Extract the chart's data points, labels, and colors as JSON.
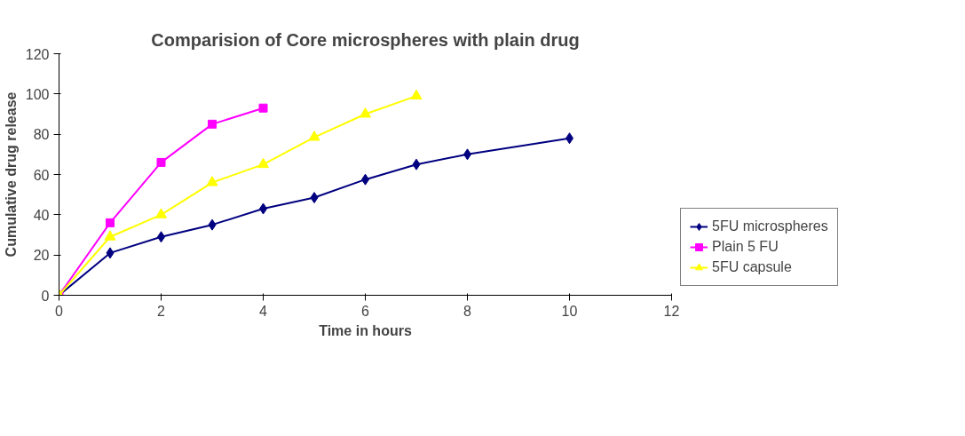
{
  "chart_data": {
    "type": "line",
    "title": "Comparision of Core microspheres with plain drug",
    "xlabel": "Time in hours",
    "ylabel": "Cumulative drug release",
    "xlim": [
      0,
      12
    ],
    "xticks": [
      0,
      2,
      4,
      6,
      8,
      10,
      12
    ],
    "ylim": [
      0,
      120
    ],
    "yticks": [
      0,
      20,
      40,
      60,
      80,
      100,
      120
    ],
    "grid": false,
    "legend": "bottom right",
    "series": [
      {
        "name": "5FU microspheres",
        "color": "#000080",
        "marker": "diamond",
        "x": [
          0,
          1,
          2,
          3,
          4,
          5,
          6,
          7,
          8,
          10
        ],
        "values": [
          0,
          21,
          29,
          35,
          43,
          48.5,
          57.5,
          65,
          70,
          78
        ]
      },
      {
        "name": "Plain 5 FU",
        "color": "#ff00ff",
        "marker": "square",
        "x": [
          0,
          1,
          2,
          3,
          4
        ],
        "values": [
          0,
          36,
          66,
          85,
          93
        ]
      },
      {
        "name": "5FU capsule",
        "color": "#ffff00",
        "marker": "triangle",
        "x": [
          0,
          1,
          2,
          3,
          4,
          5,
          6,
          7
        ],
        "values": [
          0,
          29,
          40,
          56,
          65,
          78.5,
          90,
          99
        ]
      }
    ]
  }
}
